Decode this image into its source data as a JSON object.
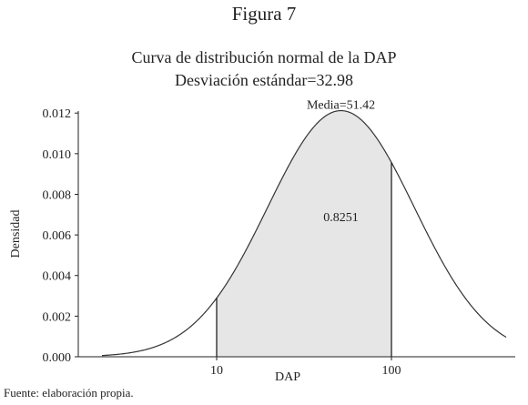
{
  "figure_label": "Figura 7",
  "source_note": "Fuente: elaboración propia.",
  "chart_data": {
    "type": "area",
    "title": "Curva de distribución normal de la DAP",
    "subtitle": "Desviación estándar=32.98",
    "xlabel": "DAP",
    "ylabel": "Densidad",
    "x_scale": "log",
    "x_ticks": [
      10,
      100
    ],
    "x_tick_labels": [
      "10",
      "100"
    ],
    "y_ticks": [
      0.0,
      0.002,
      0.004,
      0.006,
      0.008,
      0.01,
      0.012
    ],
    "y_tick_labels": [
      "0.000",
      "0.002",
      "0.004",
      "0.006",
      "0.008",
      "0.010",
      "0.012"
    ],
    "ylim": [
      0,
      0.0121
    ],
    "mean": 51.42,
    "mean_label": "Media=51.42",
    "std_dev": 32.98,
    "shaded_range": [
      10,
      100
    ],
    "shaded_area_label": "0.8251",
    "colors": {
      "curve": "#333333",
      "shade": "#e6e6e6",
      "axis": "#222222"
    }
  }
}
